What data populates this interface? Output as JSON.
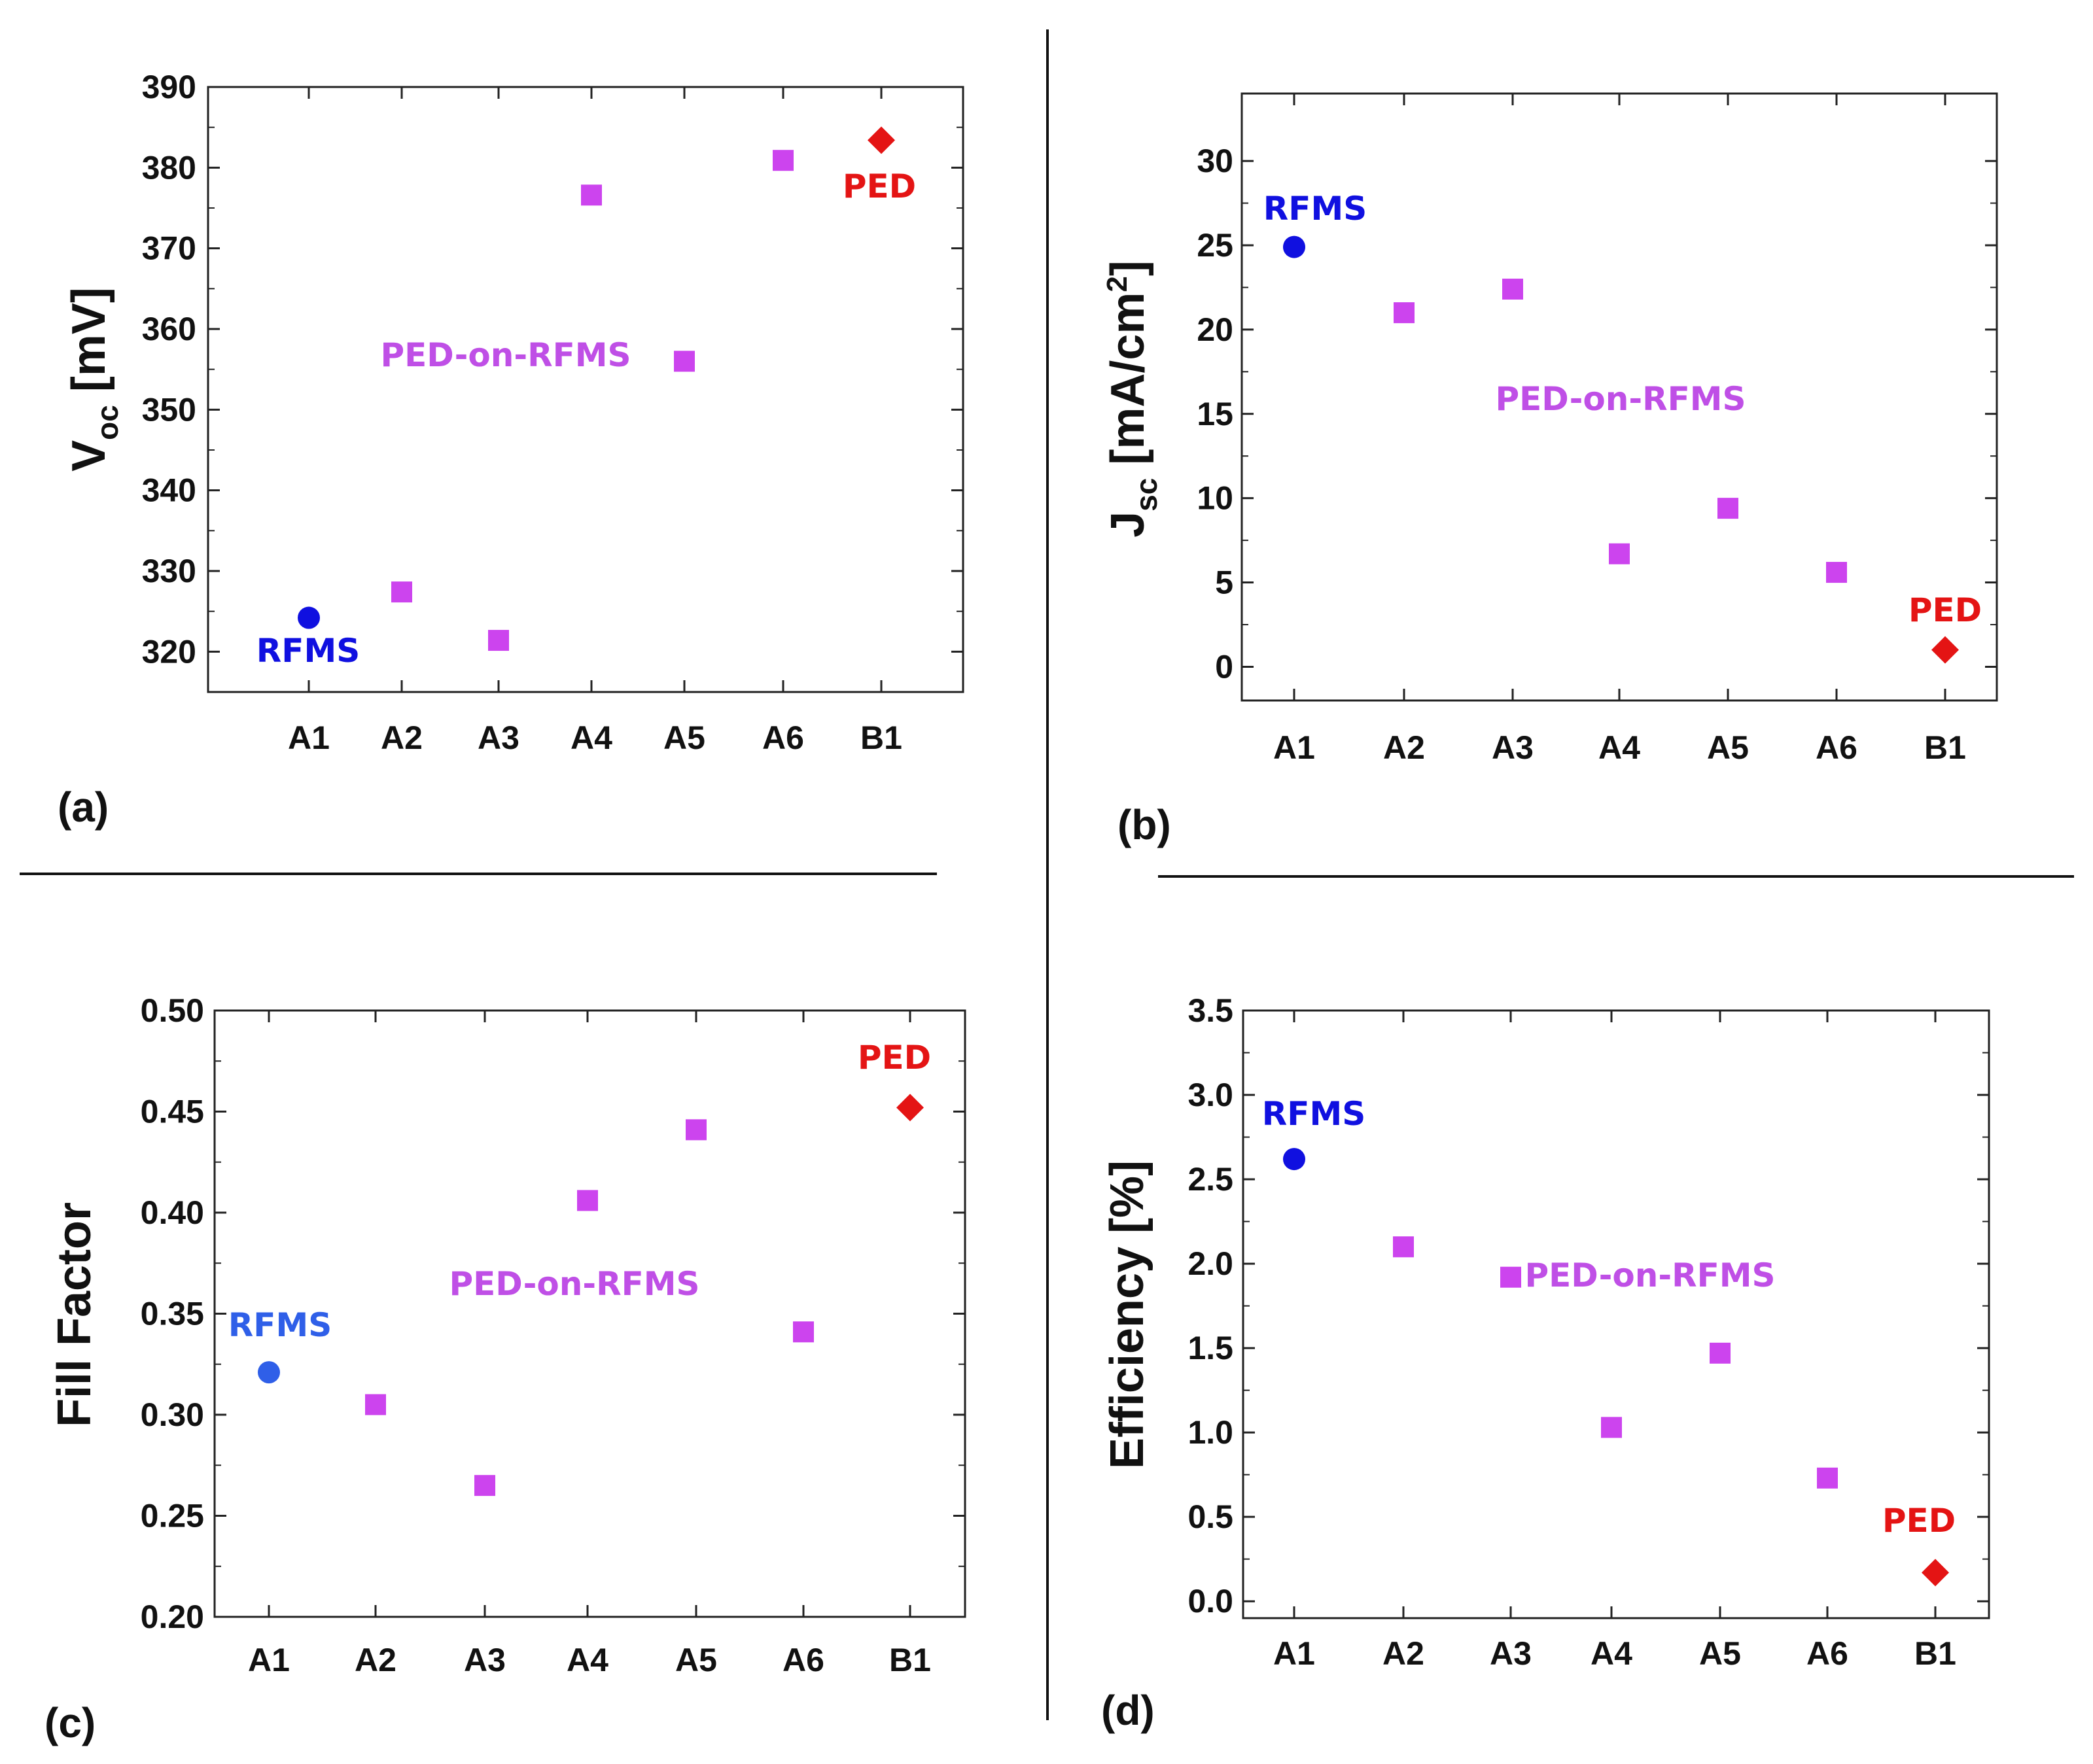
{
  "colors": {
    "rfms": "#1010e0",
    "rfms_c": "#2f5fe8",
    "ped_on_rfms": "#cc44ee",
    "ped_on_rfms_text": "#bf4fe6",
    "ped": "#e41414",
    "axis": "#222222",
    "separator": "#111111"
  },
  "chart_data": [
    {
      "id": "a",
      "type": "scatter",
      "panel_label": "(a)",
      "ylabel_main": "V",
      "ylabel_sub": "oc",
      "ylabel_unit": " [mV]",
      "categories": [
        "A1",
        "A2",
        "A3",
        "A4",
        "A5",
        "A6",
        "B1"
      ],
      "ylim": [
        315,
        390
      ],
      "yticks": [
        320,
        330,
        340,
        350,
        360,
        370,
        380,
        390
      ],
      "ytick_labels": [
        "320",
        "330",
        "340",
        "350",
        "360",
        "370",
        "380",
        "390"
      ],
      "grid": false,
      "series": [
        {
          "name": "RFMS",
          "marker": "circle",
          "points": [
            {
              "x": "A1",
              "y": 324.2
            }
          ]
        },
        {
          "name": "PED-on-RFMS",
          "marker": "square",
          "points": [
            {
              "x": "A2",
              "y": 327.4
            },
            {
              "x": "A3",
              "y": 321.4
            },
            {
              "x": "A4",
              "y": 376.6
            },
            {
              "x": "A5",
              "y": 356.0
            },
            {
              "x": "A6",
              "y": 380.9
            }
          ]
        },
        {
          "name": "PED",
          "marker": "diamond",
          "points": [
            {
              "x": "B1",
              "y": 383.4
            }
          ]
        }
      ]
    },
    {
      "id": "b",
      "type": "scatter",
      "panel_label": "(b)",
      "ylabel_main": "J",
      "ylabel_sub": "sc",
      "ylabel_unit": " [mA/cm",
      "ylabel_sup": "2",
      "ylabel_end": "]",
      "categories": [
        "A1",
        "A2",
        "A3",
        "A4",
        "A5",
        "A6",
        "B1"
      ],
      "ylim": [
        -2,
        34
      ],
      "yticks": [
        0,
        5,
        10,
        15,
        20,
        25,
        30
      ],
      "ytick_labels": [
        "0",
        "5",
        "10",
        "15",
        "20",
        "25",
        "30"
      ],
      "grid": false,
      "series": [
        {
          "name": "RFMS",
          "marker": "circle",
          "points": [
            {
              "x": "A1",
              "y": 24.9
            }
          ]
        },
        {
          "name": "PED-on-RFMS",
          "marker": "square",
          "points": [
            {
              "x": "A2",
              "y": 21.0
            },
            {
              "x": "A3",
              "y": 22.4
            },
            {
              "x": "A4",
              "y": 6.7
            },
            {
              "x": "A5",
              "y": 9.4
            },
            {
              "x": "A6",
              "y": 5.6
            }
          ]
        },
        {
          "name": "PED",
          "marker": "diamond",
          "points": [
            {
              "x": "B1",
              "y": 1.0
            }
          ]
        }
      ]
    },
    {
      "id": "c",
      "type": "scatter",
      "panel_label": "(c)",
      "ylabel_main": "Fill Factor",
      "categories": [
        "A1",
        "A2",
        "A3",
        "A4",
        "A5",
        "A6",
        "B1"
      ],
      "ylim": [
        0.2,
        0.5
      ],
      "yticks": [
        0.2,
        0.25,
        0.3,
        0.35,
        0.4,
        0.45,
        0.5
      ],
      "ytick_labels": [
        "0.20",
        "0.25",
        "0.30",
        "0.35",
        "0.40",
        "0.45",
        "0.50"
      ],
      "grid": false,
      "series": [
        {
          "name": "RFMS",
          "marker": "circle",
          "points": [
            {
              "x": "A1",
              "y": 0.321
            }
          ]
        },
        {
          "name": "PED-on-RFMS",
          "marker": "square",
          "points": [
            {
              "x": "A2",
              "y": 0.305
            },
            {
              "x": "A3",
              "y": 0.265
            },
            {
              "x": "A4",
              "y": 0.406
            },
            {
              "x": "A5",
              "y": 0.441
            },
            {
              "x": "A6",
              "y": 0.341
            }
          ]
        },
        {
          "name": "PED",
          "marker": "diamond",
          "points": [
            {
              "x": "B1",
              "y": 0.452
            }
          ]
        }
      ]
    },
    {
      "id": "d",
      "type": "scatter",
      "panel_label": "(d)",
      "ylabel_main": "Efficiency [%]",
      "categories": [
        "A1",
        "A2",
        "A3",
        "A4",
        "A5",
        "A6",
        "B1"
      ],
      "ylim": [
        -0.1,
        3.5
      ],
      "yticks": [
        0,
        0.5,
        1,
        1.5,
        2,
        2.5,
        3,
        3.5
      ],
      "ytick_labels": [
        "0.0",
        "0.5",
        "1.0",
        "1.5",
        "2.0",
        "2.5",
        "3.0",
        "3.5"
      ],
      "grid": false,
      "series": [
        {
          "name": "RFMS",
          "marker": "circle",
          "points": [
            {
              "x": "A1",
              "y": 2.62
            }
          ]
        },
        {
          "name": "PED-on-RFMS",
          "marker": "square",
          "points": [
            {
              "x": "A2",
              "y": 2.1
            },
            {
              "x": "A3",
              "y": 1.92
            },
            {
              "x": "A4",
              "y": 1.03
            },
            {
              "x": "A5",
              "y": 1.47
            },
            {
              "x": "A6",
              "y": 0.73
            }
          ]
        },
        {
          "name": "PED",
          "marker": "diamond",
          "points": [
            {
              "x": "B1",
              "y": 0.17
            }
          ]
        }
      ]
    }
  ]
}
